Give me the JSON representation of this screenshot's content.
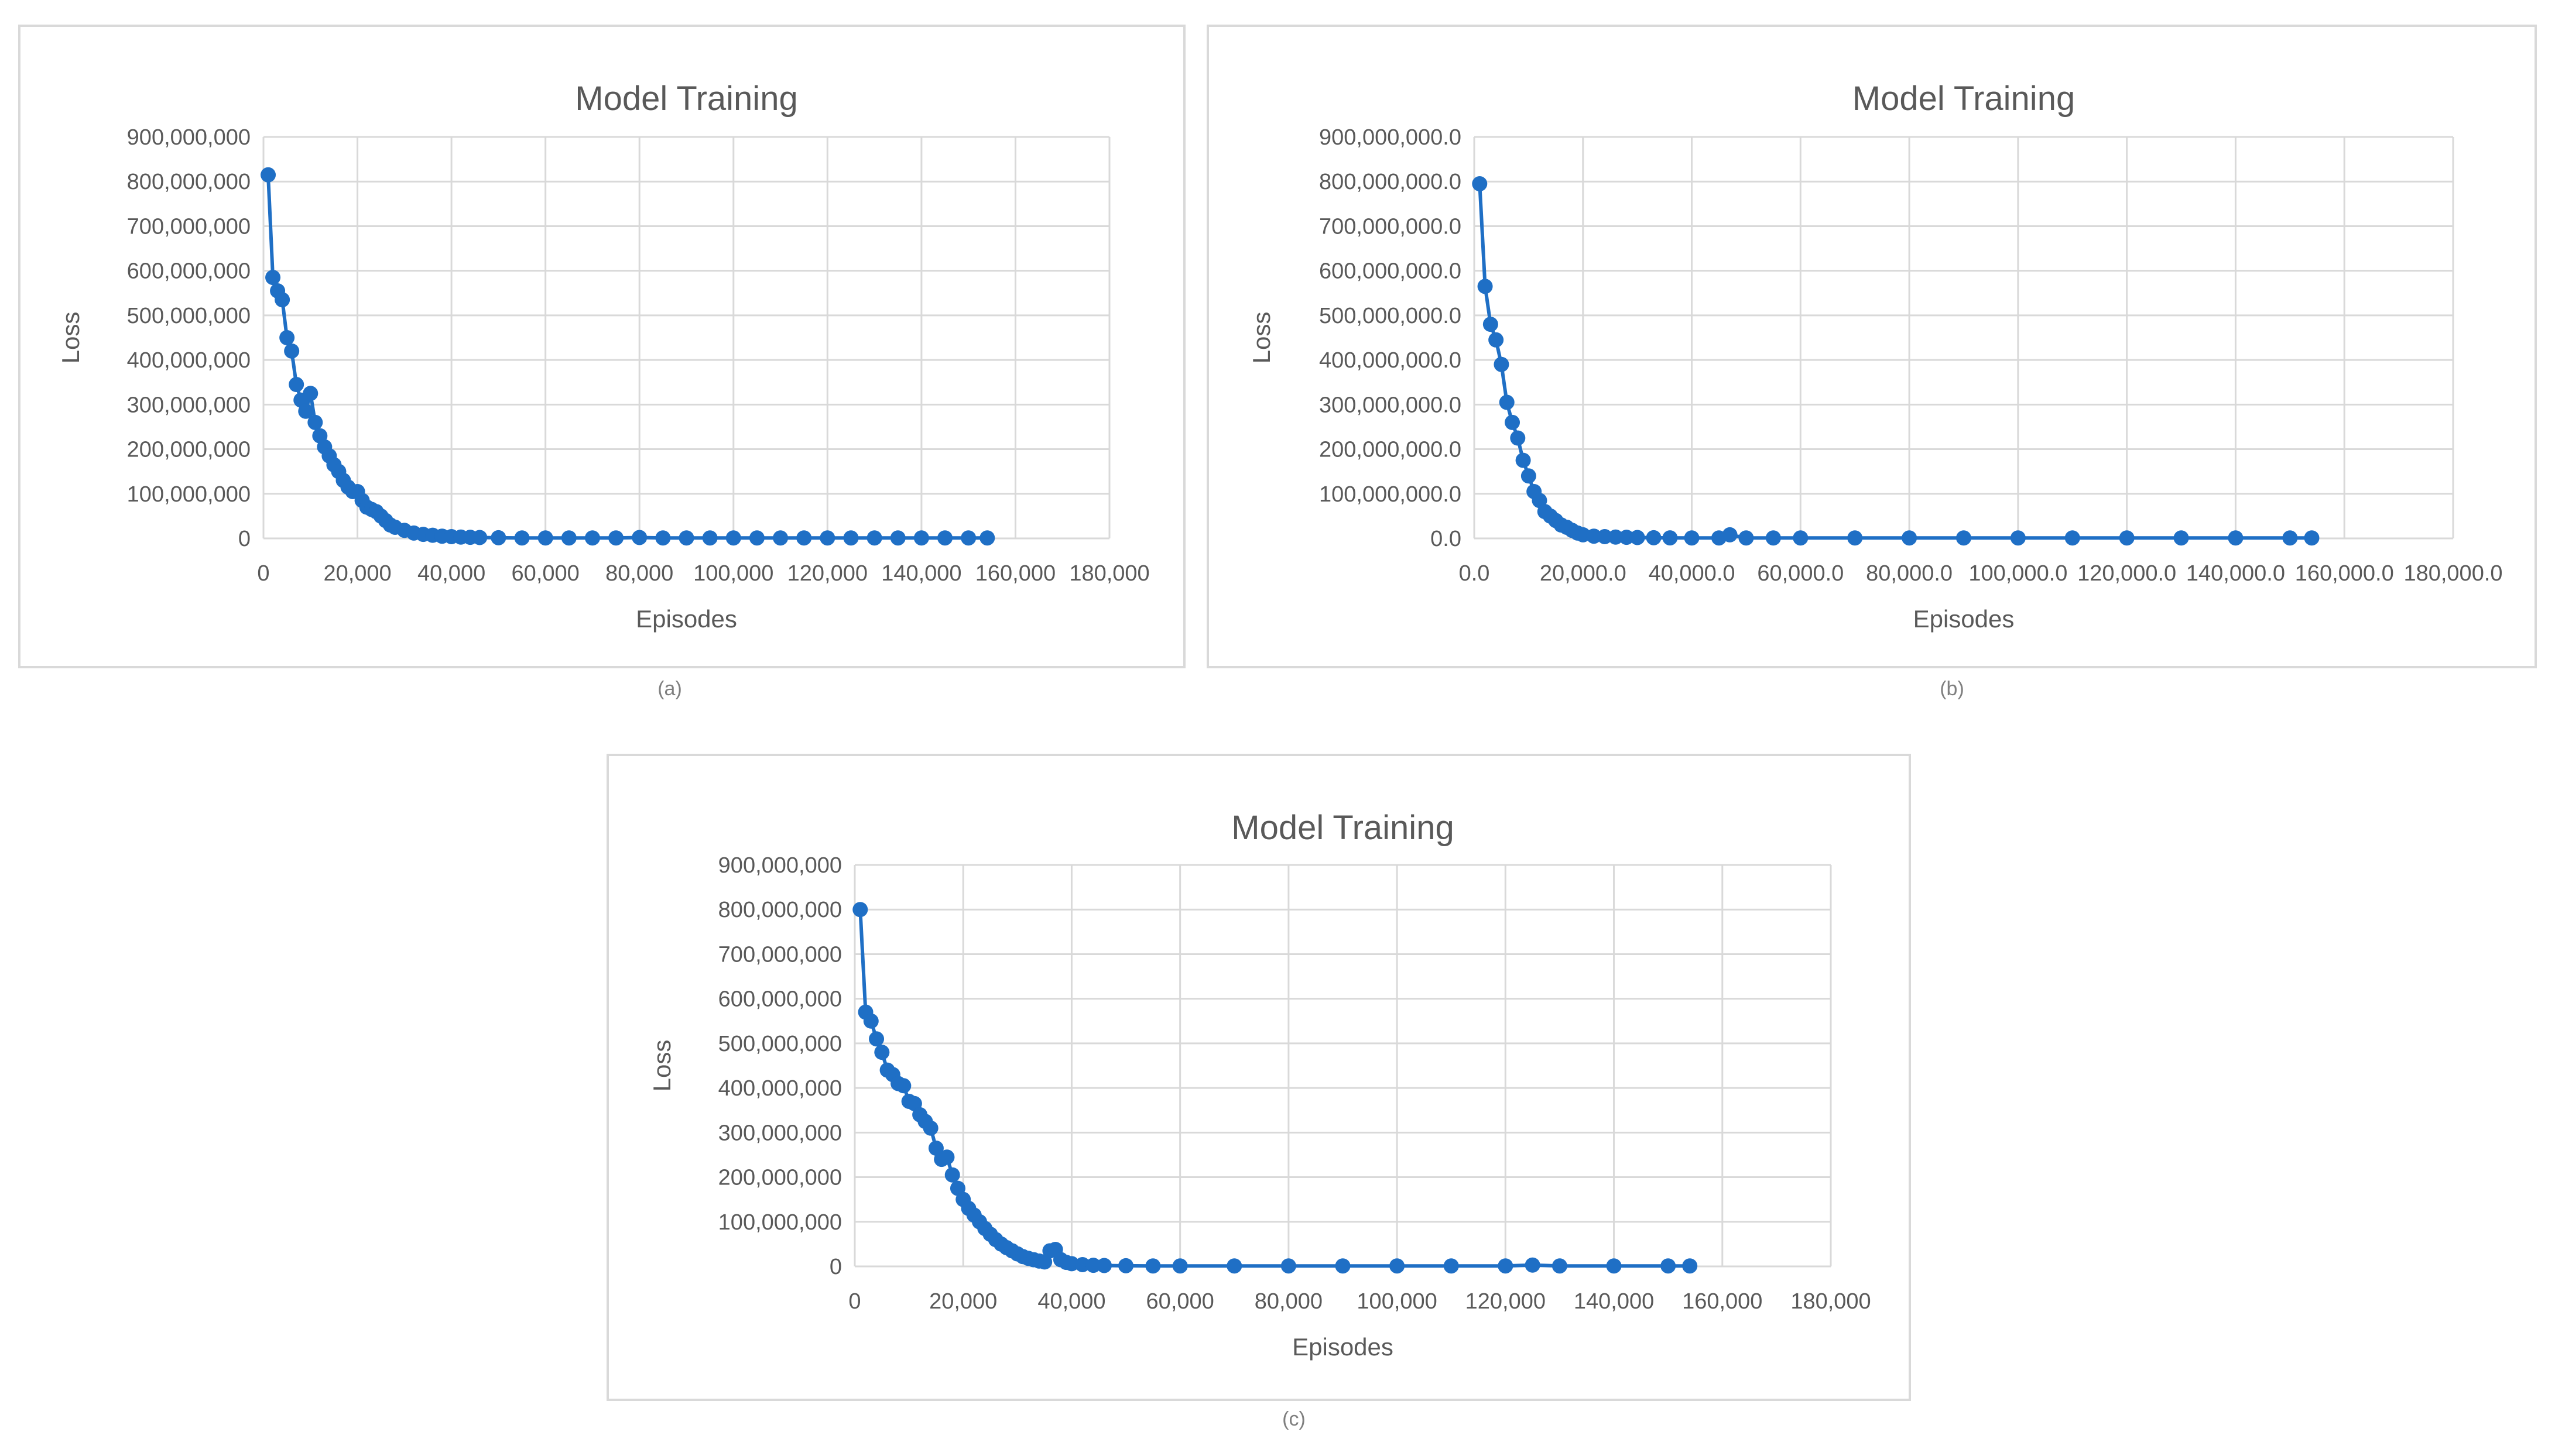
{
  "colors": {
    "series": "#1f6fc5",
    "grid": "#d9d9d9",
    "text": "#595959",
    "border": "#d9d9d9"
  },
  "captions": [
    "(a)",
    "(b)",
    "(c)"
  ],
  "chart_data": [
    {
      "type": "line",
      "title": "Model Training",
      "xlabel": "Episodes",
      "ylabel": "Loss",
      "xlim": [
        0,
        180000
      ],
      "ylim": [
        0,
        900000000
      ],
      "x_ticks": [
        "0",
        "20,000",
        "40,000",
        "60,000",
        "80,000",
        "100,000",
        "120,000",
        "140,000",
        "160,000",
        "180,000"
      ],
      "y_ticks": [
        "0",
        "100,000,000",
        "200,000,000",
        "300,000,000",
        "400,000,000",
        "500,000,000",
        "600,000,000",
        "700,000,000",
        "800,000,000",
        "900,000,000"
      ],
      "grid": true,
      "legend": "none",
      "series": [
        {
          "x": [
            1000,
            2000,
            3000,
            4000,
            5000,
            6000,
            7000,
            8000,
            9000,
            10000,
            11000,
            12000,
            13000,
            14000,
            15000,
            16000,
            17000,
            18000,
            19000,
            20000,
            21000,
            22000,
            23000,
            24000,
            25000,
            26000,
            27000,
            28000,
            30000,
            32000,
            34000,
            36000,
            38000,
            40000,
            42000,
            44000,
            46000,
            50000,
            55000,
            60000,
            65000,
            70000,
            75000,
            80000,
            85000,
            90000,
            95000,
            100000,
            105000,
            110000,
            115000,
            120000,
            125000,
            130000,
            135000,
            140000,
            145000,
            150000,
            154000
          ],
          "y": [
            815000000,
            585000000,
            555000000,
            535000000,
            450000000,
            420000000,
            345000000,
            310000000,
            285000000,
            325000000,
            260000000,
            230000000,
            205000000,
            185000000,
            165000000,
            150000000,
            130000000,
            115000000,
            105000000,
            105000000,
            85000000,
            70000000,
            65000000,
            60000000,
            50000000,
            40000000,
            30000000,
            25000000,
            18000000,
            12000000,
            9000000,
            7000000,
            5000000,
            4000000,
            3000000,
            2500000,
            2000000,
            1500000,
            1000000,
            1000000,
            1000000,
            1000000,
            1000000,
            2000000,
            1000000,
            1000000,
            1000000,
            1000000,
            1000000,
            1000000,
            1000000,
            1000000,
            1000000,
            1000000,
            1000000,
            1000000,
            1000000,
            1000000,
            1000000
          ]
        }
      ]
    },
    {
      "type": "line",
      "title": "Model Training",
      "xlabel": "Episodes",
      "ylabel": "Loss",
      "xlim": [
        0,
        180000
      ],
      "ylim": [
        0,
        900000000
      ],
      "x_ticks": [
        "0.0",
        "20,000.0",
        "40,000.0",
        "60,000.0",
        "80,000.0",
        "100,000.0",
        "120,000.0",
        "140,000.0",
        "160,000.0",
        "180,000.0"
      ],
      "y_ticks": [
        "0.0",
        "100,000,000.0",
        "200,000,000.0",
        "300,000,000.0",
        "400,000,000.0",
        "500,000,000.0",
        "600,000,000.0",
        "700,000,000.0",
        "800,000,000.0",
        "900,000,000.0"
      ],
      "grid": true,
      "legend": "none",
      "series": [
        {
          "x": [
            1000,
            2000,
            3000,
            4000,
            5000,
            6000,
            7000,
            8000,
            9000,
            10000,
            11000,
            12000,
            13000,
            14000,
            15000,
            16000,
            17000,
            18000,
            19000,
            20000,
            22000,
            24000,
            26000,
            28000,
            30000,
            33000,
            36000,
            40000,
            45000,
            47000,
            50000,
            55000,
            60000,
            70000,
            80000,
            90000,
            100000,
            110000,
            120000,
            130000,
            140000,
            150000,
            154000
          ],
          "y": [
            795000000,
            565000000,
            480000000,
            445000000,
            390000000,
            305000000,
            260000000,
            225000000,
            175000000,
            140000000,
            105000000,
            85000000,
            60000000,
            50000000,
            40000000,
            30000000,
            25000000,
            18000000,
            12000000,
            8000000,
            5000000,
            4000000,
            3000000,
            2500000,
            2000000,
            1500000,
            1200000,
            1000000,
            1000000,
            8000000,
            1000000,
            1000000,
            1000000,
            1000000,
            1000000,
            1000000,
            1000000,
            1000000,
            1000000,
            1000000,
            1000000,
            1000000,
            1000000
          ]
        }
      ]
    },
    {
      "type": "line",
      "title": "Model Training",
      "xlabel": "Episodes",
      "ylabel": "Loss",
      "xlim": [
        0,
        180000
      ],
      "ylim": [
        0,
        900000000
      ],
      "x_ticks": [
        "0",
        "20,000",
        "40,000",
        "60,000",
        "80,000",
        "100,000",
        "120,000",
        "140,000",
        "160,000",
        "180,000"
      ],
      "y_ticks": [
        "0",
        "100,000,000",
        "200,000,000",
        "300,000,000",
        "400,000,000",
        "500,000,000",
        "600,000,000",
        "700,000,000",
        "800,000,000",
        "900,000,000"
      ],
      "grid": true,
      "legend": "none",
      "series": [
        {
          "x": [
            1000,
            2000,
            3000,
            4000,
            5000,
            6000,
            7000,
            8000,
            9000,
            10000,
            11000,
            12000,
            13000,
            14000,
            15000,
            16000,
            17000,
            18000,
            19000,
            20000,
            21000,
            22000,
            23000,
            24000,
            25000,
            26000,
            27000,
            28000,
            29000,
            30000,
            31000,
            32000,
            33000,
            34000,
            35000,
            36000,
            37000,
            38000,
            39000,
            40000,
            42000,
            44000,
            46000,
            50000,
            55000,
            60000,
            70000,
            80000,
            90000,
            100000,
            110000,
            120000,
            125000,
            130000,
            140000,
            150000,
            154000
          ],
          "y": [
            800000000,
            570000000,
            550000000,
            510000000,
            480000000,
            440000000,
            430000000,
            410000000,
            405000000,
            370000000,
            365000000,
            340000000,
            325000000,
            310000000,
            265000000,
            240000000,
            245000000,
            205000000,
            175000000,
            150000000,
            130000000,
            115000000,
            100000000,
            85000000,
            72000000,
            60000000,
            50000000,
            42000000,
            35000000,
            28000000,
            22000000,
            18000000,
            15000000,
            12000000,
            10000000,
            35000000,
            38000000,
            15000000,
            9000000,
            6000000,
            4000000,
            2500000,
            2000000,
            1500000,
            1000000,
            1000000,
            1000000,
            1000000,
            1000000,
            1000000,
            1000000,
            1000000,
            3000000,
            1000000,
            1000000,
            1000000,
            1000000
          ]
        }
      ]
    }
  ]
}
